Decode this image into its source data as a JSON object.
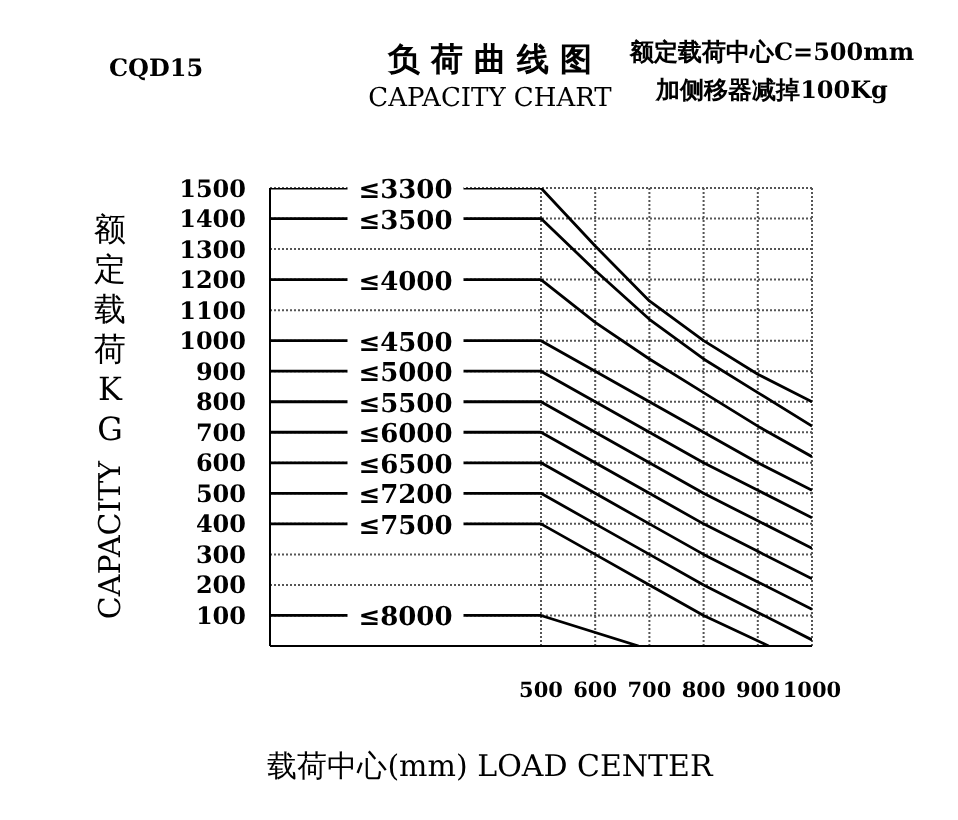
{
  "chart_data": {
    "type": "line",
    "title": "负 荷 曲 线 图",
    "subtitle": "CAPACITY CHART",
    "xlabel": "载荷中心(mm) LOAD CENTER",
    "ylabel": "额定载荷KG CAPACITY",
    "annotations": [
      "CQD15",
      "额定载荷中心C=500mm",
      "加侧移器减掉100Kg"
    ],
    "xlim": [
      0,
      1000
    ],
    "xticks": [
      500,
      600,
      700,
      800,
      900,
      1000
    ],
    "ylim": [
      0,
      1500
    ],
    "yticks": [
      100,
      200,
      300,
      400,
      500,
      600,
      700,
      800,
      900,
      1000,
      1100,
      1200,
      1300,
      1400,
      1500
    ],
    "grid": true,
    "legend": false,
    "marker": "none",
    "line_style": "solid",
    "series": [
      {
        "name": "≤3300",
        "color": "#000000",
        "x": [
          0,
          500,
          600,
          700,
          800,
          900,
          1000
        ],
        "values": [
          1500,
          1500,
          1310,
          1130,
          1000,
          890,
          800
        ]
      },
      {
        "name": "≤3500",
        "color": "#000000",
        "x": [
          0,
          500,
          600,
          700,
          800,
          900,
          1000
        ],
        "values": [
          1400,
          1400,
          1230,
          1070,
          940,
          830,
          720
        ]
      },
      {
        "name": "≤4000",
        "color": "#000000",
        "x": [
          0,
          500,
          600,
          700,
          800,
          900,
          1000
        ],
        "values": [
          1200,
          1200,
          1060,
          940,
          830,
          720,
          620
        ]
      },
      {
        "name": "≤4500",
        "color": "#000000",
        "x": [
          0,
          500,
          600,
          700,
          800,
          900,
          1000
        ],
        "values": [
          1000,
          1000,
          900,
          800,
          700,
          600,
          510
        ]
      },
      {
        "name": "≤5000",
        "color": "#000000",
        "x": [
          0,
          500,
          600,
          700,
          800,
          900,
          1000
        ],
        "values": [
          900,
          900,
          800,
          700,
          600,
          510,
          420
        ]
      },
      {
        "name": "≤5500",
        "color": "#000000",
        "x": [
          0,
          500,
          600,
          700,
          800,
          900,
          1000
        ],
        "values": [
          800,
          800,
          700,
          600,
          500,
          410,
          320
        ]
      },
      {
        "name": "≤6000",
        "color": "#000000",
        "x": [
          0,
          500,
          600,
          700,
          800,
          900,
          1000
        ],
        "values": [
          700,
          700,
          600,
          500,
          400,
          310,
          220
        ]
      },
      {
        "name": "≤6500",
        "color": "#000000",
        "x": [
          0,
          500,
          600,
          700,
          800,
          900,
          1000
        ],
        "values": [
          600,
          600,
          500,
          400,
          300,
          210,
          120
        ]
      },
      {
        "name": "≤7200",
        "color": "#000000",
        "x": [
          0,
          500,
          600,
          700,
          800,
          900,
          1000
        ],
        "values": [
          500,
          500,
          400,
          300,
          200,
          110,
          20
        ]
      },
      {
        "name": "≤7500",
        "color": "#000000",
        "x": [
          0,
          500,
          600,
          700,
          800,
          920
        ],
        "values": [
          400,
          400,
          300,
          200,
          100,
          0
        ]
      },
      {
        "name": "≤8000",
        "color": "#000000",
        "x": [
          0,
          500,
          680
        ],
        "values": [
          100,
          100,
          0
        ]
      }
    ]
  }
}
